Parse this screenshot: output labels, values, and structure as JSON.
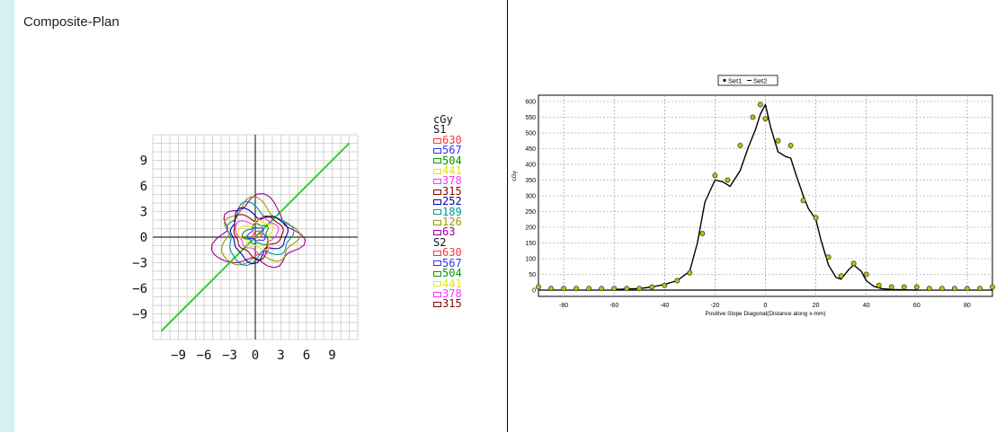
{
  "page": {
    "title": "Composite-Plan"
  },
  "colors": {
    "sidebar": "#d6eff3",
    "diagonal": "#33cc33",
    "line": "#000000",
    "marker": "#bfbf00"
  },
  "dose_legend": {
    "unit": "cGy",
    "sets": [
      {
        "label": "S1",
        "levels": [
          {
            "value": "630",
            "color": "#ff3333"
          },
          {
            "value": "567",
            "color": "#3333ff"
          },
          {
            "value": "504",
            "color": "#009900"
          },
          {
            "value": "441",
            "color": "#e6e600"
          },
          {
            "value": "378",
            "color": "#ff33ff"
          },
          {
            "value": "315",
            "color": "#880000"
          },
          {
            "value": "252",
            "color": "#0000aa"
          },
          {
            "value": "189",
            "color": "#009999"
          },
          {
            "value": "126",
            "color": "#999900"
          },
          {
            "value": "63",
            "color": "#990099"
          }
        ]
      },
      {
        "label": "S2",
        "levels": [
          {
            "value": "630",
            "color": "#ff3333"
          },
          {
            "value": "567",
            "color": "#3333ff"
          },
          {
            "value": "504",
            "color": "#009900"
          },
          {
            "value": "441",
            "color": "#e6e600"
          },
          {
            "value": "378",
            "color": "#ff33ff"
          },
          {
            "value": "315",
            "color": "#880000"
          }
        ]
      }
    ]
  },
  "chart_data": [
    {
      "type": "contour",
      "xlim": [
        -12,
        12
      ],
      "ylim": [
        -12,
        12
      ],
      "x_ticks": [
        -9,
        -6,
        -3,
        0,
        3,
        6,
        9
      ],
      "y_ticks": [
        9,
        6,
        3,
        0,
        -3,
        -6,
        -9
      ],
      "diagonal": {
        "from": [
          -11,
          -11
        ],
        "to": [
          11,
          11
        ]
      }
    },
    {
      "type": "line",
      "legend": [
        "Set1",
        "Set2"
      ],
      "xlabel": "Positive    Slope    Diagonal(Distance    along    x-mm)",
      "ylabel": "cGy",
      "xlim": [
        -90,
        90
      ],
      "ylim": [
        -20,
        620
      ],
      "x_ticks": [
        -80,
        -60,
        -40,
        -20,
        0,
        20,
        40,
        60,
        80
      ],
      "y_ticks": [
        600,
        550,
        500,
        450,
        400,
        350,
        300,
        250,
        200,
        150,
        100,
        50,
        0
      ],
      "grid": true,
      "series": [
        {
          "name": "Set1",
          "style": "markers",
          "x": [
            -90,
            -85,
            -80,
            -75,
            -70,
            -65,
            -60,
            -55,
            -50,
            -45,
            -40,
            -35,
            -30,
            -25,
            -20,
            -15,
            -10,
            -5,
            -2,
            0,
            5,
            10,
            15,
            20,
            25,
            30,
            35,
            40,
            45,
            50,
            55,
            60,
            65,
            70,
            75,
            80,
            85,
            90
          ],
          "y": [
            10,
            5,
            5,
            5,
            5,
            5,
            5,
            5,
            5,
            10,
            15,
            30,
            55,
            180,
            365,
            350,
            460,
            550,
            590,
            545,
            475,
            460,
            285,
            230,
            105,
            45,
            85,
            50,
            15,
            10,
            10,
            10,
            5,
            5,
            5,
            5,
            5,
            10
          ]
        },
        {
          "name": "Set2",
          "style": "line",
          "x": [
            -60,
            -50,
            -45,
            -40,
            -35,
            -30,
            -27,
            -24,
            -20,
            -17,
            -14,
            -10,
            -7,
            -4,
            -2,
            0,
            2,
            5,
            8,
            10,
            12,
            15,
            17,
            20,
            22,
            25,
            28,
            30,
            33,
            35,
            38,
            40,
            43,
            46,
            50,
            55,
            60
          ],
          "y": [
            2,
            5,
            10,
            18,
            30,
            60,
            150,
            280,
            350,
            345,
            330,
            380,
            450,
            510,
            560,
            590,
            520,
            440,
            425,
            420,
            370,
            300,
            260,
            225,
            160,
            80,
            40,
            35,
            65,
            80,
            60,
            30,
            12,
            5,
            2,
            1,
            0
          ]
        }
      ]
    }
  ]
}
